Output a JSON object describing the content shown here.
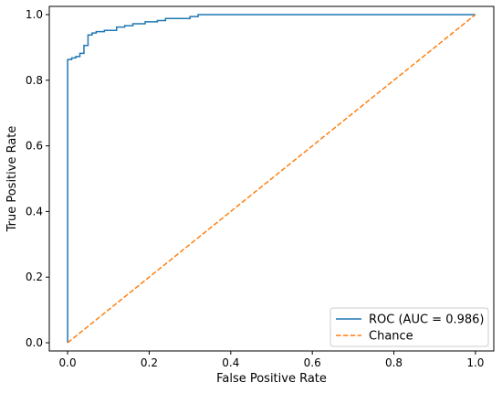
{
  "chart_data": {
    "type": "line",
    "title": "",
    "xlabel": "False Positive Rate",
    "ylabel": "True Positive Rate",
    "xlim": [
      -0.045,
      1.045
    ],
    "ylim": [
      -0.025,
      1.025
    ],
    "x_ticks": [
      "0.0",
      "0.2",
      "0.4",
      "0.6",
      "0.8",
      "1.0"
    ],
    "y_ticks": [
      "0.0",
      "0.2",
      "0.4",
      "0.6",
      "0.8",
      "1.0"
    ],
    "grid": false,
    "legend_position": "lower-right",
    "series": [
      {
        "name": "ROC (AUC = 0.986)",
        "color": "#1f77b4",
        "style": "solid",
        "x": [
          0.0,
          0.0,
          0.01,
          0.01,
          0.02,
          0.02,
          0.03,
          0.03,
          0.04,
          0.04,
          0.05,
          0.05,
          0.06,
          0.06,
          0.07,
          0.07,
          0.09,
          0.09,
          0.12,
          0.12,
          0.14,
          0.14,
          0.16,
          0.16,
          0.19,
          0.19,
          0.22,
          0.22,
          0.24,
          0.24,
          0.3,
          0.3,
          0.32,
          0.32,
          1.0
        ],
        "y": [
          0.0,
          0.863,
          0.863,
          0.868,
          0.868,
          0.872,
          0.872,
          0.882,
          0.882,
          0.906,
          0.906,
          0.938,
          0.938,
          0.944,
          0.944,
          0.948,
          0.948,
          0.952,
          0.952,
          0.962,
          0.962,
          0.966,
          0.966,
          0.972,
          0.972,
          0.978,
          0.978,
          0.982,
          0.982,
          0.988,
          0.988,
          0.994,
          0.994,
          1.0,
          1.0
        ]
      },
      {
        "name": "Chance",
        "color": "#ff7f0e",
        "style": "dashed",
        "x": [
          0.0,
          1.0
        ],
        "y": [
          0.0,
          1.0
        ]
      }
    ]
  }
}
